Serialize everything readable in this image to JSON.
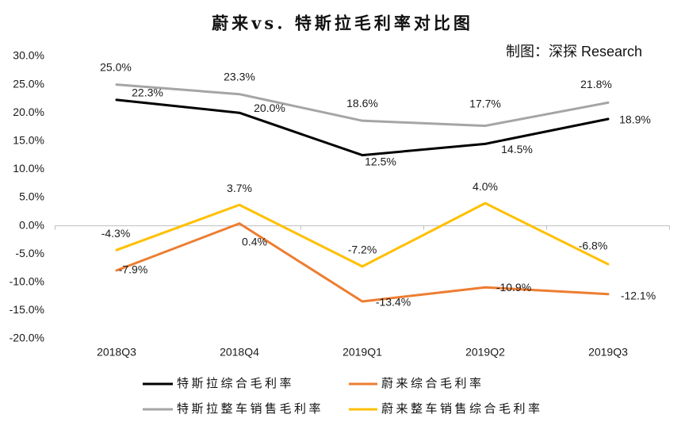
{
  "credit": "制图：深探 Research",
  "chart_data": {
    "type": "line",
    "title": "蔚来vs. 特斯拉毛利率对比图",
    "categories": [
      "2018Q3",
      "2018Q4",
      "2019Q1",
      "2019Q2",
      "2019Q3"
    ],
    "ylim": [
      -20,
      30
    ],
    "ytick_labels": [
      "30.0%",
      "25.0%",
      "20.0%",
      "15.0%",
      "10.0%",
      "5.0%",
      "0.0%",
      "-5.0%",
      "-10.0%",
      "-15.0%",
      "-20.0%"
    ],
    "series": [
      {
        "name": "特斯拉综合毛利率",
        "color": "#000000",
        "values": [
          22.3,
          20.0,
          12.5,
          14.5,
          18.9
        ]
      },
      {
        "name": "蔚来综合毛利率",
        "color": "#ED7D31",
        "values": [
          -7.9,
          0.4,
          -13.4,
          -10.9,
          -12.1
        ]
      },
      {
        "name": "特斯拉整车销售毛利率",
        "color": "#A5A5A5",
        "values": [
          25.0,
          23.3,
          18.6,
          17.7,
          21.8
        ]
      },
      {
        "name": "蔚来整车销售综合毛利率",
        "color": "#FFC000",
        "values": [
          -4.3,
          3.7,
          -7.2,
          4.0,
          -6.8
        ]
      }
    ],
    "grid": false,
    "legend_position": "bottom"
  }
}
